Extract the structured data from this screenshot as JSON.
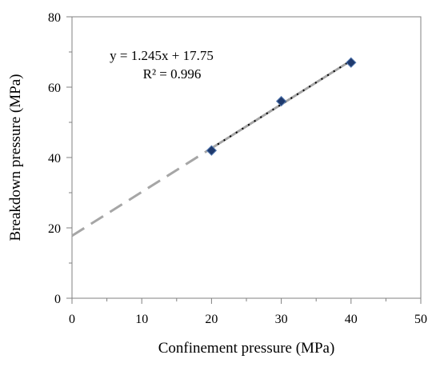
{
  "chart_data": {
    "type": "scatter",
    "xlabel": "Confinement pressure (MPa)",
    "ylabel": "Breakdown pressure (MPa)",
    "xlim": [
      0,
      50
    ],
    "ylim": [
      0,
      80
    ],
    "x_ticks": [
      0,
      10,
      20,
      30,
      40,
      50
    ],
    "y_ticks": [
      0,
      20,
      40,
      60,
      80
    ],
    "grid": false,
    "series": [
      {
        "x": [
          20,
          30,
          40
        ],
        "y": [
          42,
          56,
          67
        ],
        "marker": "diamond",
        "color": "#1f3a6e"
      }
    ],
    "trendline": {
      "slope": 1.245,
      "intercept": 17.75,
      "equation": "y = 1.245x + 17.75",
      "r_squared": "R² = 0.996",
      "color": "#a6a6a6",
      "style": "dashed"
    }
  }
}
